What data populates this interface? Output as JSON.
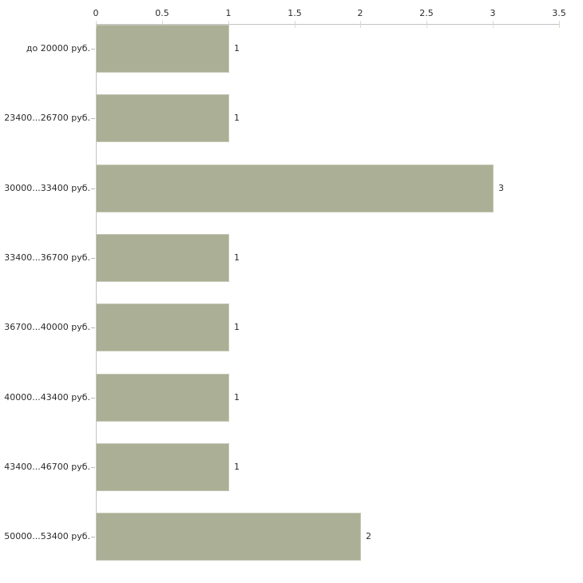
{
  "chart_data": {
    "type": "bar",
    "orientation": "horizontal",
    "title": "",
    "xlabel": "",
    "ylabel": "",
    "categories": [
      "до 20000 руб.",
      "23400...26700 руб.",
      "30000...33400 руб.",
      "33400...36700 руб.",
      "36700...40000 руб.",
      "40000...43400 руб.",
      "43400...46700 руб.",
      "50000...53400 руб."
    ],
    "values": [
      1,
      1,
      3,
      1,
      1,
      1,
      1,
      2
    ],
    "value_labels": [
      "1",
      "1",
      "3",
      "1",
      "1",
      "1",
      "1",
      "2"
    ],
    "xlim": [
      0,
      3.5
    ],
    "xticks": [
      0,
      0.5,
      1,
      1.5,
      2,
      2.5,
      3,
      3.5
    ],
    "xtick_labels": [
      "0",
      "0.5",
      "1",
      "1.5",
      "2",
      "2.5",
      "3",
      "3.5"
    ],
    "grid": false,
    "legend_position": "none",
    "colors": {
      "bar_fill": "#aaaf96",
      "bar_border": "#c6c9b5",
      "axis_line": "#c3c3c3",
      "value_tick": "#d8dcc2",
      "category_tick": "#bdbbac",
      "text": "#2b2b2b",
      "background": "#ffffff"
    }
  }
}
